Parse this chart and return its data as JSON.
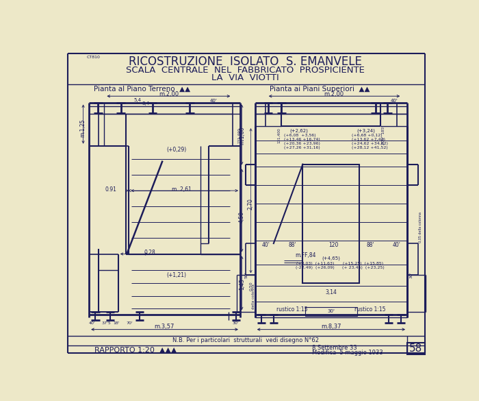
{
  "bg_color": "#ede8c8",
  "line_color": "#1c1c5a",
  "title_line1": "RICOSTRUZIONE  ISOLATO  S. EMANVELE",
  "title_line2": "SCALA  CENTRALE  NEL  FABBRICATO  PROSPICIENTE",
  "title_line3": "LA  VIA  VIOTTI",
  "subtitle_left": "Pianta al Piano Terreno  ▲▲",
  "subtitle_right": "Pianta ai Piani Superiori  ▲▲",
  "note": "N.B. Per i particolari  strutturali  vedi disegno N°62",
  "footer_left": "RAPPORTO 1:20  ▲▲▲",
  "footer_date1": "8 Settembre 33",
  "footer_date2": "Modifica  5 maggio 1933",
  "sheet_number": "58"
}
